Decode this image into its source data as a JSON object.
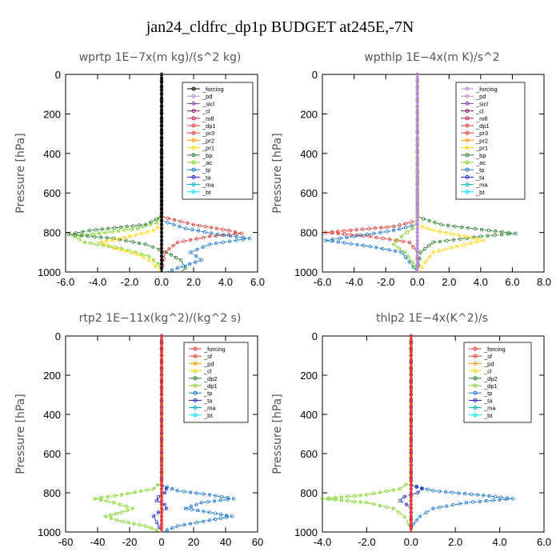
{
  "figure_title": "jan24_cldfrc_dp1p  BUDGET at245E,-7N",
  "chart_data": [
    {
      "type": "line",
      "title": "wprtp   1E−7x(m kg)/(s^2 kg)",
      "ylabel": "Pressure [hPa]",
      "xlim": [
        -6,
        6
      ],
      "ylim": [
        1000,
        0
      ],
      "xticks": [
        "-6.0",
        "-4.0",
        "-2.0",
        "0.0",
        "2.0",
        "4.0",
        "6.0"
      ],
      "yticks": [
        "0",
        "200",
        "400",
        "600",
        "800",
        "1000"
      ],
      "xtick_values": [
        -6,
        -4,
        -2,
        0,
        2,
        4,
        6
      ],
      "ytick_values": [
        0,
        200,
        400,
        600,
        800,
        1000
      ],
      "legend": [
        "_forcing",
        "_pd",
        "_sicl",
        "_cl",
        "_mfl",
        "_dp1",
        "_pr3",
        "_pr2",
        "_pr1",
        "_bp",
        "_ac",
        "_tp",
        "_ta",
        "_ma",
        "_bt"
      ],
      "legend_colors": [
        "#000000",
        "#b98ad6",
        "#7b3fb8",
        "#8b1a5a",
        "#c2185b",
        "#e53935",
        "#e53935",
        "#ff9800",
        "#ffd600",
        "#2e7d32",
        "#7ed321",
        "#1976d2",
        "#1a23c9",
        "#00acc1",
        "#00e5ff"
      ],
      "series": [
        {
          "name": "_ac",
          "color": "#7ed321",
          "y": [
            0,
            700,
            750,
            780,
            800,
            820,
            850,
            880,
            920,
            960,
            1000
          ],
          "x": [
            0,
            0,
            -0.3,
            -1.5,
            -3.5,
            -5.5,
            -4.8,
            -2.5,
            -0.8,
            -0.2,
            0
          ]
        },
        {
          "name": "_bp",
          "color": "#2e7d32",
          "y": [
            0,
            720,
            760,
            790,
            810,
            830,
            860,
            900,
            940,
            980,
            1000
          ],
          "x": [
            0,
            0,
            -1,
            -4.5,
            -5.8,
            -3,
            -1,
            0.3,
            1.2,
            1.5,
            1.2
          ]
        },
        {
          "name": "_pr1",
          "color": "#ffd600",
          "y": [
            0,
            760,
            790,
            820,
            850,
            880,
            910,
            940,
            970,
            1000
          ],
          "x": [
            0,
            0,
            -0.5,
            -2,
            -3.8,
            -3,
            -1.5,
            -0.8,
            -0.4,
            0
          ]
        },
        {
          "name": "_dp1",
          "color": "#e53935",
          "y": [
            0,
            720,
            760,
            790,
            805,
            820,
            850,
            900,
            1000
          ],
          "x": [
            0,
            0,
            2,
            4.2,
            5,
            3,
            1,
            0.2,
            0
          ]
        },
        {
          "name": "_tp",
          "color": "#1976d2",
          "y": [
            0,
            740,
            780,
            810,
            830,
            860,
            900,
            940,
            980,
            1000
          ],
          "x": [
            0,
            0,
            1.5,
            3.5,
            5.5,
            3,
            1.8,
            2.5,
            1,
            0.3
          ]
        },
        {
          "name": "_forcing",
          "color": "#000000",
          "y": [
            0,
            200,
            400,
            600,
            800,
            1000
          ],
          "x": [
            0,
            0,
            0,
            0,
            0,
            0
          ]
        }
      ]
    },
    {
      "type": "line",
      "title": "wpthlp   1E−4x(m K)/s^2",
      "ylabel": "Pressure [hPa]",
      "xlim": [
        -6,
        8
      ],
      "ylim": [
        1000,
        0
      ],
      "xticks": [
        "-6.0",
        "-4.0",
        "-2.0",
        "0.0",
        "2.0",
        "4.0",
        "6.0",
        "8.0"
      ],
      "yticks": [
        "0",
        "200",
        "400",
        "600",
        "800",
        "1000"
      ],
      "xtick_values": [
        -6,
        -4,
        -2,
        0,
        2,
        4,
        6,
        8
      ],
      "ytick_values": [
        0,
        200,
        400,
        600,
        800,
        1000
      ],
      "legend": [
        "_forcing",
        "_pd",
        "_sicl",
        "_cl",
        "_mfl",
        "_dp1",
        "_pr3",
        "_pr2",
        "_pr1",
        "_bp",
        "_ac",
        "_tp",
        "_ta",
        "_ma",
        "_bt"
      ],
      "legend_colors": [
        "#b98ad6",
        "#b98ad6",
        "#7b3fb8",
        "#8b1a5a",
        "#c2185b",
        "#e53935",
        "#e53935",
        "#ff9800",
        "#ffd600",
        "#2e7d32",
        "#7ed321",
        "#1976d2",
        "#1a23c9",
        "#00acc1",
        "#00e5ff"
      ],
      "series": [
        {
          "name": "_dp1",
          "color": "#e53935",
          "y": [
            0,
            740,
            770,
            800,
            820,
            850,
            900,
            1000
          ],
          "x": [
            0,
            0,
            -1.5,
            -5.8,
            -3,
            -0.5,
            0,
            0
          ]
        },
        {
          "name": "_tp",
          "color": "#1976d2",
          "y": [
            0,
            760,
            790,
            820,
            840,
            870,
            900,
            950,
            1000
          ],
          "x": [
            0,
            0,
            -1.5,
            -4,
            -5.8,
            -3,
            -1,
            -0.5,
            0
          ]
        },
        {
          "name": "_bp",
          "color": "#2e7d32",
          "y": [
            0,
            720,
            760,
            790,
            805,
            820,
            850,
            900,
            1000
          ],
          "x": [
            0,
            0,
            1.5,
            4.5,
            6.2,
            4,
            1,
            0.2,
            0
          ]
        },
        {
          "name": "_pr1",
          "color": "#ffd600",
          "y": [
            0,
            760,
            790,
            820,
            840,
            870,
            900,
            950,
            1000
          ],
          "x": [
            0,
            0,
            1,
            3,
            4.2,
            2.5,
            1,
            0.5,
            0.1
          ]
        },
        {
          "name": "_ac",
          "color": "#7ed321",
          "y": [
            0,
            740,
            780,
            820,
            860,
            900,
            950,
            1000
          ],
          "x": [
            0,
            0,
            -0.3,
            -1,
            -1.5,
            -0.8,
            -0.3,
            0
          ]
        },
        {
          "name": "_forcing",
          "color": "#b98ad6",
          "y": [
            0,
            200,
            400,
            600,
            800,
            1000
          ],
          "x": [
            0,
            0,
            0,
            0,
            0,
            0
          ]
        }
      ]
    },
    {
      "type": "line",
      "title": "rtp2   1E−11x(kg^2)/(kg^2 s)",
      "ylabel": "Pressure [hPa]",
      "xlim": [
        -60,
        60
      ],
      "ylim": [
        1000,
        0
      ],
      "xticks": [
        "-60",
        "-40",
        "-20",
        "0",
        "20",
        "40",
        "60"
      ],
      "yticks": [
        "0",
        "200",
        "400",
        "600",
        "800",
        "1000"
      ],
      "xtick_values": [
        -60,
        -40,
        -20,
        0,
        20,
        40,
        60
      ],
      "ytick_values": [
        0,
        200,
        400,
        600,
        800,
        1000
      ],
      "legend": [
        "_forcing",
        "_sf",
        "_pd",
        "_cl",
        "_dp2",
        "_dp1",
        "_tp",
        "_ta",
        "_ma",
        "_bt"
      ],
      "legend_colors": [
        "#e53935",
        "#e53935",
        "#ff9800",
        "#ffd600",
        "#2e7d32",
        "#7ed321",
        "#1976d2",
        "#1a23c9",
        "#00acc1",
        "#00e5ff"
      ],
      "series": [
        {
          "name": "_dp1",
          "color": "#7ed321",
          "y": [
            0,
            740,
            780,
            810,
            830,
            850,
            880,
            900,
            920,
            940,
            970,
            1000
          ],
          "x": [
            0,
            0,
            -5,
            -25,
            -42,
            -30,
            -18,
            -25,
            -35,
            -28,
            -10,
            0
          ]
        },
        {
          "name": "_tp",
          "color": "#1976d2",
          "y": [
            0,
            760,
            790,
            810,
            830,
            850,
            880,
            900,
            920,
            940,
            970,
            1000
          ],
          "x": [
            0,
            0,
            10,
            30,
            45,
            25,
            15,
            30,
            44,
            30,
            10,
            0
          ]
        },
        {
          "name": "_ta",
          "color": "#1a23c9",
          "y": [
            0,
            760,
            780,
            800,
            820,
            840,
            860,
            880,
            900,
            920,
            950,
            1000
          ],
          "x": [
            0,
            0,
            3,
            2,
            -2,
            -3,
            2,
            3,
            -2,
            -5,
            -3,
            0
          ]
        },
        {
          "name": "_forcing",
          "color": "#e53935",
          "y": [
            0,
            200,
            400,
            600,
            800,
            1000
          ],
          "x": [
            0,
            0,
            0,
            0,
            0,
            0
          ]
        }
      ]
    },
    {
      "type": "line",
      "title": "thlp2   1E−4x(K^2)/s",
      "ylabel": "Pressure [hPa]",
      "xlim": [
        -4,
        6
      ],
      "ylim": [
        1000,
        0
      ],
      "xticks": [
        "-4.0",
        "-2.0",
        "0.0",
        "2.0",
        "4.0",
        "6.0"
      ],
      "yticks": [
        "0",
        "200",
        "400",
        "600",
        "800",
        "1000"
      ],
      "xtick_values": [
        -4,
        -2,
        0,
        2,
        4,
        6
      ],
      "ytick_values": [
        0,
        200,
        400,
        600,
        800,
        1000
      ],
      "legend": [
        "_forcing",
        "_sf",
        "_pd",
        "_cl",
        "_dp2",
        "_dp1",
        "_tp",
        "_ta",
        "_ma",
        "_bt"
      ],
      "legend_colors": [
        "#e53935",
        "#e53935",
        "#ff9800",
        "#ffd600",
        "#2e7d32",
        "#7ed321",
        "#1976d2",
        "#1a23c9",
        "#00acc1",
        "#00e5ff"
      ],
      "series": [
        {
          "name": "_dp1",
          "color": "#7ed321",
          "y": [
            0,
            740,
            780,
            810,
            830,
            850,
            880,
            920,
            960,
            1000
          ],
          "x": [
            0,
            0,
            -0.5,
            -2,
            -4,
            -2,
            -0.8,
            -0.3,
            -0.1,
            0
          ]
        },
        {
          "name": "_tp",
          "color": "#1976d2",
          "y": [
            0,
            760,
            790,
            810,
            830,
            850,
            880,
            920,
            960,
            1000
          ],
          "x": [
            0,
            0,
            1,
            3,
            4.6,
            2.5,
            1,
            0.4,
            0.1,
            0
          ]
        },
        {
          "name": "_ta",
          "color": "#1a23c9",
          "y": [
            0,
            760,
            780,
            800,
            820,
            840,
            860,
            880,
            900,
            1000
          ],
          "x": [
            0,
            0,
            0.5,
            0.3,
            -0.3,
            -0.5,
            -0.2,
            0,
            0,
            0
          ]
        },
        {
          "name": "_forcing",
          "color": "#e53935",
          "y": [
            0,
            200,
            400,
            600,
            800,
            1000
          ],
          "x": [
            0,
            0,
            0,
            0,
            0,
            0
          ]
        }
      ]
    }
  ]
}
